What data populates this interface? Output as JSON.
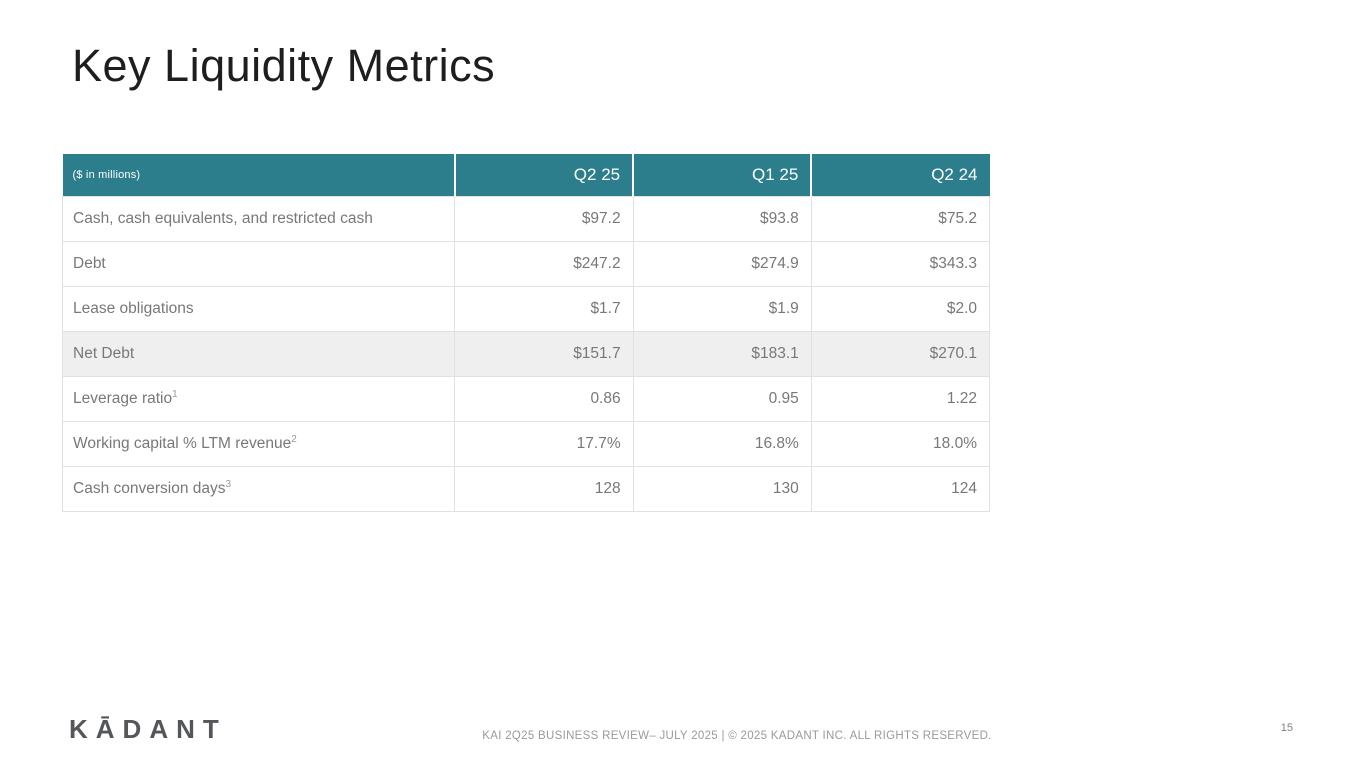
{
  "title": "Key Liquidity Metrics",
  "table": {
    "unit_label": "($ in millions)",
    "columns": [
      "Q2 25",
      "Q1 25",
      "Q2 24"
    ],
    "rows": [
      {
        "label": "Cash, cash equivalents, and restricted cash",
        "sup": "",
        "values": [
          "$97.2",
          "$93.8",
          "$75.2"
        ]
      },
      {
        "label": "Debt",
        "sup": "",
        "values": [
          "$247.2",
          "$274.9",
          "$343.3"
        ]
      },
      {
        "label": "Lease obligations",
        "sup": "",
        "values": [
          "$1.7",
          "$1.9",
          "$2.0"
        ]
      },
      {
        "label": "Net Debt",
        "sup": "",
        "values": [
          "$151.7",
          "$183.1",
          "$270.1"
        ]
      },
      {
        "label": "Leverage ratio",
        "sup": "1",
        "values": [
          "0.86",
          "0.95",
          "1.22"
        ]
      },
      {
        "label": "Working capital % LTM revenue",
        "sup": "2",
        "values": [
          "17.7%",
          "16.8%",
          "18.0%"
        ]
      },
      {
        "label": "Cash conversion days",
        "sup": "3",
        "values": [
          "128",
          "130",
          "124"
        ]
      }
    ]
  },
  "footer": {
    "logo_text": "KĀDANT",
    "text": "KAI 2Q25 BUSINESS REVIEW– JULY 2025  |  © 2025 KADANT INC. ALL RIGHTS RESERVED.",
    "page_number": "15"
  },
  "colors": {
    "header_teal": "#2D7E8D",
    "highlight_row": "#EFEFEF",
    "body_text": "#787878",
    "logo_gray": "#54565A"
  }
}
